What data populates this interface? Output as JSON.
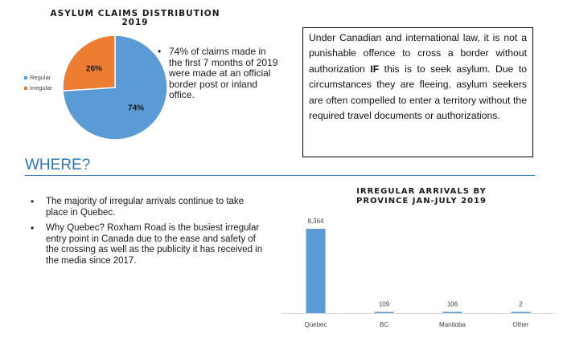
{
  "pie_chart": {
    "title_line1": "ASYLUM CLAIMS DISTRIBUTION",
    "title_line2": "2019",
    "legend": [
      {
        "label": "Regular",
        "color": "#5b9bd5"
      },
      {
        "label": "Irregular",
        "color": "#ed7d31"
      }
    ]
  },
  "bullet_note": "74% of claims made in the first 7 months of 2019 were made at an official border post or inland office.",
  "info_box": {
    "part1": "Under Canadian and international law, it is not a punishable offence to cross a border without authorization ",
    "emph": "IF",
    "part2": " this is to seek asylum. Due to circumstances they are fleeing, asylum seekers are often compelled to enter a territory without the required travel documents or authorizations."
  },
  "section_heading": "WHERE?",
  "where_list": [
    "The majority of irregular arrivals continue to take place in Quebec.",
    "Why Quebec? Roxham Road is the busiest irregular entry point in Canada due to the ease and safety of the crossing as well as the publicity it has received in the media since 2017."
  ],
  "bar_chart": {
    "title_line1": "IRREGULAR ARRIVALS BY",
    "title_line2": "PROVINCE JAN-JULY 2019"
  },
  "chart_data": [
    {
      "type": "pie",
      "title": "ASYLUM CLAIMS DISTRIBUTION 2019",
      "categories": [
        "Regular",
        "Irregular"
      ],
      "values": [
        74,
        26
      ],
      "labels": [
        "74%",
        "26%"
      ],
      "colors": [
        "#5b9bd5",
        "#ed7d31"
      ],
      "legend": "left"
    },
    {
      "type": "bar",
      "title": "IRREGULAR ARRIVALS BY PROVINCE JAN-JULY 2019",
      "categories": [
        "Quebec",
        "BC",
        "Manitoba",
        "Other"
      ],
      "values": [
        8364,
        109,
        106,
        2
      ],
      "labels": [
        "8,364",
        "109",
        "106",
        "2"
      ],
      "color": "#5b9bd5",
      "grid": false
    }
  ]
}
